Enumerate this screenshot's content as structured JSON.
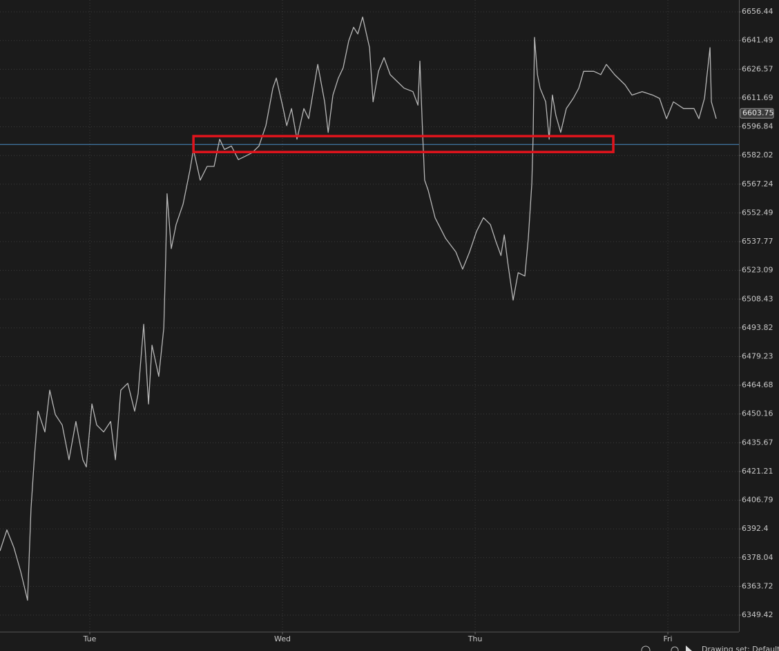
{
  "chart_data": {
    "type": "line",
    "yscale": "log",
    "grid": true,
    "color": "#b8b8b8",
    "ylim": [
      6341.2,
      6662.6
    ],
    "yticks": [
      6349.42,
      6363.72,
      6378.04,
      6392.4,
      6406.79,
      6421.21,
      6435.67,
      6450.16,
      6464.68,
      6479.23,
      6493.82,
      6508.43,
      6523.09,
      6537.77,
      6552.49,
      6567.24,
      6582.02,
      6596.84,
      6611.69,
      6626.57,
      6641.49,
      6656.44
    ],
    "xlim": [
      0.534,
      4.369
    ],
    "xticks": [
      {
        "value": 1,
        "label": "Tue"
      },
      {
        "value": 2,
        "label": "Wed"
      },
      {
        "value": 3,
        "label": "Thu"
      },
      {
        "value": 4,
        "label": "Fri"
      }
    ],
    "x": [
      0.534,
      0.57,
      0.606,
      0.642,
      0.677,
      0.695,
      0.713,
      0.731,
      0.767,
      0.792,
      0.821,
      0.857,
      0.892,
      0.928,
      0.964,
      0.982,
      1.011,
      1.036,
      1.072,
      1.108,
      1.133,
      1.161,
      1.197,
      1.233,
      1.251,
      1.28,
      1.305,
      1.323,
      1.358,
      1.384,
      1.394,
      1.401,
      1.423,
      1.448,
      1.484,
      1.52,
      1.538,
      1.573,
      1.609,
      1.645,
      1.674,
      1.699,
      1.735,
      1.771,
      1.806,
      1.842,
      1.878,
      1.914,
      1.95,
      1.968,
      2.004,
      2.022,
      2.047,
      2.075,
      2.111,
      2.136,
      2.183,
      2.219,
      2.237,
      2.262,
      2.29,
      2.315,
      2.344,
      2.369,
      2.391,
      2.416,
      2.452,
      2.47,
      2.498,
      2.527,
      2.559,
      2.595,
      2.631,
      2.677,
      2.703,
      2.713,
      2.728,
      2.738,
      2.756,
      2.792,
      2.846,
      2.9,
      2.935,
      2.971,
      3.007,
      3.043,
      3.079,
      3.108,
      3.134,
      3.151,
      3.169,
      3.197,
      3.223,
      3.258,
      3.276,
      3.294,
      3.301,
      3.308,
      3.323,
      3.337,
      3.366,
      3.384,
      3.401,
      3.419,
      3.444,
      3.473,
      3.509,
      3.538,
      3.563,
      3.616,
      3.652,
      3.681,
      3.724,
      3.778,
      3.814,
      3.867,
      3.921,
      3.957,
      3.993,
      4.029,
      4.082,
      4.136,
      4.161,
      4.19,
      4.219,
      4.226,
      4.251
    ],
    "values": [
      6381.4,
      6391.9,
      6383.1,
      6370.9,
      6356.8,
      6402.5,
      6428.8,
      6451.6,
      6441.1,
      6462.2,
      6449.9,
      6444.6,
      6427.1,
      6446.4,
      6427.1,
      6423.5,
      6455.2,
      6444.6,
      6441.1,
      6446.4,
      6427.1,
      6462.2,
      6465.7,
      6451.6,
      6460.4,
      6495.6,
      6455.2,
      6485.0,
      6469.2,
      6493.8,
      6528.9,
      6562.3,
      6534.2,
      6546.5,
      6557.0,
      6574.6,
      6585.1,
      6569.3,
      6576.4,
      6576.4,
      6590.4,
      6585.1,
      6586.9,
      6579.9,
      6581.6,
      6583.4,
      6586.9,
      6597.4,
      6616.8,
      6622.0,
      6606.2,
      6597.4,
      6606.2,
      6590.4,
      6606.2,
      6601.0,
      6629.1,
      6609.7,
      6593.9,
      6613.2,
      6622.0,
      6627.3,
      6641.4,
      6648.4,
      6644.9,
      6653.7,
      6637.8,
      6609.7,
      6625.5,
      6632.6,
      6623.8,
      6620.3,
      6616.8,
      6615.0,
      6608.0,
      6630.8,
      6592.2,
      6569.3,
      6564.1,
      6550.0,
      6539.5,
      6532.5,
      6523.7,
      6532.5,
      6543.0,
      6550.0,
      6546.5,
      6537.7,
      6530.7,
      6541.2,
      6527.2,
      6507.9,
      6521.9,
      6520.2,
      6539.5,
      6567.6,
      6592.2,
      6643.1,
      6623.8,
      6616.8,
      6609.7,
      6590.4,
      6613.2,
      6602.7,
      6593.9,
      6606.2,
      6611.5,
      6616.8,
      6625.5,
      6625.5,
      6623.8,
      6629.1,
      6623.8,
      6618.5,
      6613.2,
      6615.0,
      6613.2,
      6611.5,
      6601.0,
      6609.7,
      6606.2,
      6606.2,
      6601.0,
      6611.5,
      6637.8,
      6609.7,
      6601.0
    ],
    "last_price": 6603.75,
    "reference_line": {
      "value": 6587.7,
      "color": "#4a90c8"
    },
    "highlight_box": {
      "x": [
        1.538,
        3.717
      ],
      "y": [
        6583.8,
        6592.0
      ],
      "color": "#e0141c"
    }
  },
  "footer_text": "Drawing set: Default"
}
